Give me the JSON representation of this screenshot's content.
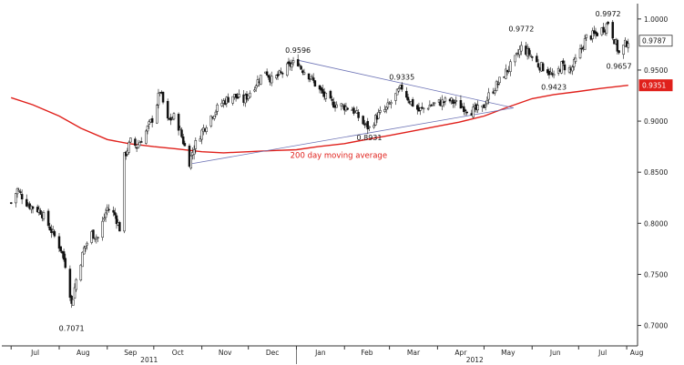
{
  "chart_data": {
    "type": "candlestick",
    "title": "",
    "xlabel": "",
    "ylabel": "",
    "ylim": [
      0.68,
      1.015
    ],
    "yticks": [
      "1.0000",
      "0.9500",
      "0.9000",
      "0.8500",
      "0.8000",
      "0.7500",
      "0.7000"
    ],
    "x_months": [
      "Jul",
      "Aug",
      "Sep",
      "Oct",
      "Nov",
      "Dec",
      "Jan",
      "Feb",
      "Mar",
      "Apr",
      "May",
      "Jun",
      "Jul",
      "Aug"
    ],
    "x_years": [
      "2011",
      "2012"
    ],
    "grid": false,
    "price_path": [
      [
        "2011-07-01",
        0.82
      ],
      [
        "2011-07-05",
        0.833
      ],
      [
        "2011-07-12",
        0.818
      ],
      [
        "2011-07-20",
        0.812
      ],
      [
        "2011-07-28",
        0.79
      ],
      [
        "2011-08-02",
        0.775
      ],
      [
        "2011-08-06",
        0.755
      ],
      [
        "2011-08-09",
        0.72
      ],
      [
        "2011-08-12",
        0.745
      ],
      [
        "2011-08-17",
        0.775
      ],
      [
        "2011-08-22",
        0.79
      ],
      [
        "2011-08-26",
        0.786
      ],
      [
        "2011-09-01",
        0.815
      ],
      [
        "2011-09-06",
        0.808
      ],
      [
        "2011-09-09",
        0.795
      ],
      [
        "2011-09-12",
        0.865
      ],
      [
        "2011-09-16",
        0.88
      ],
      [
        "2011-09-20",
        0.875
      ],
      [
        "2011-09-26",
        0.89
      ],
      [
        "2011-10-01",
        0.905
      ],
      [
        "2011-10-05",
        0.93
      ],
      [
        "2011-10-10",
        0.9
      ],
      [
        "2011-10-15",
        0.905
      ],
      [
        "2011-10-20",
        0.88
      ],
      [
        "2011-10-24",
        0.86
      ],
      [
        "2011-10-27",
        0.875
      ],
      [
        "2011-11-01",
        0.89
      ],
      [
        "2011-11-07",
        0.905
      ],
      [
        "2011-11-14",
        0.918
      ],
      [
        "2011-11-21",
        0.925
      ],
      [
        "2011-11-28",
        0.92
      ],
      [
        "2011-12-05",
        0.935
      ],
      [
        "2011-12-12",
        0.95
      ],
      [
        "2011-12-16",
        0.94
      ],
      [
        "2011-12-21",
        0.945
      ],
      [
        "2011-12-28",
        0.955
      ],
      [
        "2012-01-02",
        0.958
      ],
      [
        "2012-01-04",
        0.952
      ],
      [
        "2012-01-09",
        0.945
      ],
      [
        "2012-01-16",
        0.93
      ],
      [
        "2012-01-23",
        0.918
      ],
      [
        "2012-01-30",
        0.915
      ],
      [
        "2012-02-06",
        0.912
      ],
      [
        "2012-02-13",
        0.898
      ],
      [
        "2012-02-17",
        0.893
      ],
      [
        "2012-02-22",
        0.905
      ],
      [
        "2012-02-28",
        0.912
      ],
      [
        "2012-03-05",
        0.925
      ],
      [
        "2012-03-09",
        0.933
      ],
      [
        "2012-03-14",
        0.92
      ],
      [
        "2012-03-20",
        0.91
      ],
      [
        "2012-03-26",
        0.915
      ],
      [
        "2012-04-02",
        0.918
      ],
      [
        "2012-04-09",
        0.92
      ],
      [
        "2012-04-16",
        0.915
      ],
      [
        "2012-04-23",
        0.91
      ],
      [
        "2012-04-30",
        0.912
      ],
      [
        "2012-05-04",
        0.925
      ],
      [
        "2012-05-09",
        0.935
      ],
      [
        "2012-05-15",
        0.948
      ],
      [
        "2012-05-21",
        0.96
      ],
      [
        "2012-05-25",
        0.972
      ],
      [
        "2012-05-31",
        0.965
      ],
      [
        "2012-06-05",
        0.955
      ],
      [
        "2012-06-11",
        0.95
      ],
      [
        "2012-06-15",
        0.942
      ],
      [
        "2012-06-20",
        0.955
      ],
      [
        "2012-06-26",
        0.95
      ],
      [
        "2012-07-02",
        0.968
      ],
      [
        "2012-07-06",
        0.982
      ],
      [
        "2012-07-12",
        0.985
      ],
      [
        "2012-07-18",
        0.992
      ],
      [
        "2012-07-20",
        0.997
      ],
      [
        "2012-07-24",
        0.98
      ],
      [
        "2012-07-27",
        0.966
      ],
      [
        "2012-07-31",
        0.975
      ],
      [
        "2012-08-02",
        0.9787
      ]
    ],
    "moving_average": {
      "label": "200 day moving average",
      "color": "#e0201b",
      "points": [
        [
          "2011-07-01",
          0.923
        ],
        [
          "2011-07-15",
          0.916
        ],
        [
          "2011-08-01",
          0.905
        ],
        [
          "2011-08-15",
          0.893
        ],
        [
          "2011-09-01",
          0.882
        ],
        [
          "2011-09-15",
          0.878
        ],
        [
          "2011-10-01",
          0.875
        ],
        [
          "2011-10-15",
          0.873
        ],
        [
          "2011-11-01",
          0.87
        ],
        [
          "2011-11-15",
          0.869
        ],
        [
          "2011-12-01",
          0.87
        ],
        [
          "2011-12-15",
          0.871
        ],
        [
          "2012-01-01",
          0.872
        ],
        [
          "2012-01-15",
          0.875
        ],
        [
          "2012-02-01",
          0.878
        ],
        [
          "2012-02-15",
          0.882
        ],
        [
          "2012-03-01",
          0.886
        ],
        [
          "2012-03-15",
          0.89
        ],
        [
          "2012-04-01",
          0.895
        ],
        [
          "2012-04-15",
          0.899
        ],
        [
          "2012-05-01",
          0.905
        ],
        [
          "2012-05-15",
          0.913
        ],
        [
          "2012-06-01",
          0.922
        ],
        [
          "2012-06-15",
          0.926
        ],
        [
          "2012-07-01",
          0.929
        ],
        [
          "2012-07-15",
          0.932
        ],
        [
          "2012-08-02",
          0.9351
        ]
      ]
    },
    "trendlines": [
      {
        "from": [
          "2012-01-02",
          0.9596
        ],
        "to": [
          "2012-05-20",
          0.913
        ]
      },
      {
        "from": [
          "2011-10-24",
          0.858
        ],
        "to": [
          "2012-05-20",
          0.913
        ]
      }
    ],
    "annotations": [
      {
        "label": "0.7071",
        "x": "2011-08-09",
        "y": 0.7071
      },
      {
        "label": "0.9596",
        "x": "2012-01-02",
        "y": 0.9596
      },
      {
        "label": "0.9335",
        "x": "2012-03-09",
        "y": 0.9335
      },
      {
        "label": "0.8931",
        "x": "2012-02-17",
        "y": 0.8931
      },
      {
        "label": "0.9772",
        "x": "2012-05-25",
        "y": 0.9772
      },
      {
        "label": "0.9423",
        "x": "2012-06-15",
        "y": 0.9423
      },
      {
        "label": "0.9972",
        "x": "2012-07-20",
        "y": 0.9972
      },
      {
        "label": "0.9657",
        "x": "2012-07-27",
        "y": 0.9657
      }
    ],
    "last_price_label": "0.9787",
    "ma_price_label": "0.9351",
    "accent_color": "#e0201b",
    "trendline_color": "#6e74b6"
  }
}
